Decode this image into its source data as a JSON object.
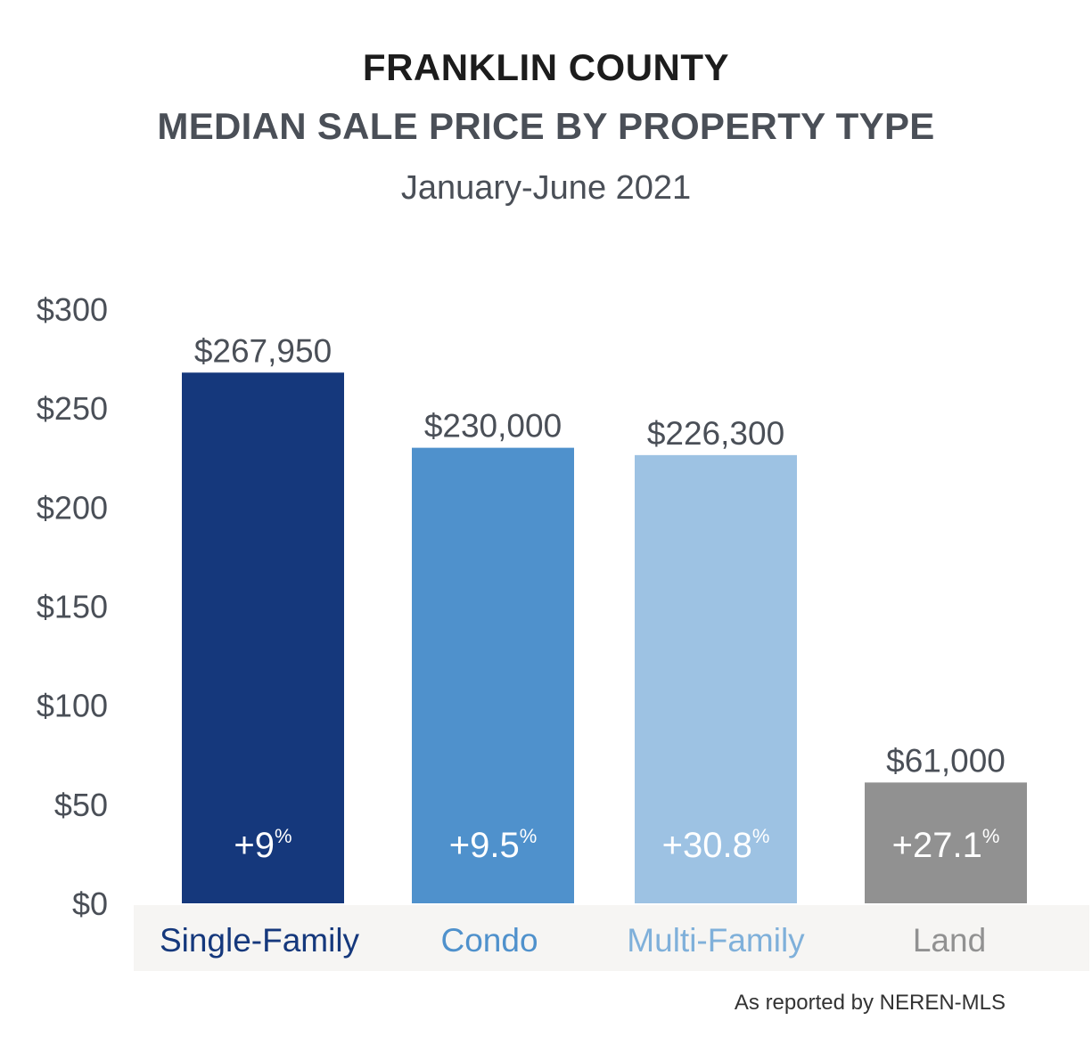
{
  "header": {
    "title_line1": "FRANKLIN COUNTY",
    "title_line2": "MEDIAN SALE PRICE BY PROPERTY TYPE",
    "subtitle": "January-June 2021"
  },
  "footer": {
    "source": "As reported by NEREN-MLS"
  },
  "chart_data": {
    "type": "bar",
    "title": "MEDIAN SALE PRICE BY PROPERTY TYPE",
    "subtitle": "January-June 2021",
    "categories": [
      "Single-Family",
      "Condo",
      "Multi-Family",
      "Land"
    ],
    "values": [
      267950,
      230000,
      226300,
      61000
    ],
    "value_labels": [
      "$267,950",
      "$230,000",
      "$226,300",
      "$61,000"
    ],
    "changes": [
      "+9",
      "+9.5",
      "+30.8",
      "+27.1"
    ],
    "change_unit": "%",
    "colors": [
      "#15387c",
      "#4f91cc",
      "#9dc2e3",
      "#919191"
    ],
    "label_colors": [
      "#15387c",
      "#4f91cc",
      "#7fb0da",
      "#919191"
    ],
    "y_ticks": [
      0,
      50,
      100,
      150,
      200,
      250,
      300
    ],
    "y_tick_labels": [
      "$0",
      "$50",
      "$100",
      "$150",
      "$200",
      "$250",
      "$300"
    ],
    "ylim": [
      0,
      300000
    ],
    "y_unit_scale": 1000,
    "grid": false,
    "legend": "none"
  }
}
